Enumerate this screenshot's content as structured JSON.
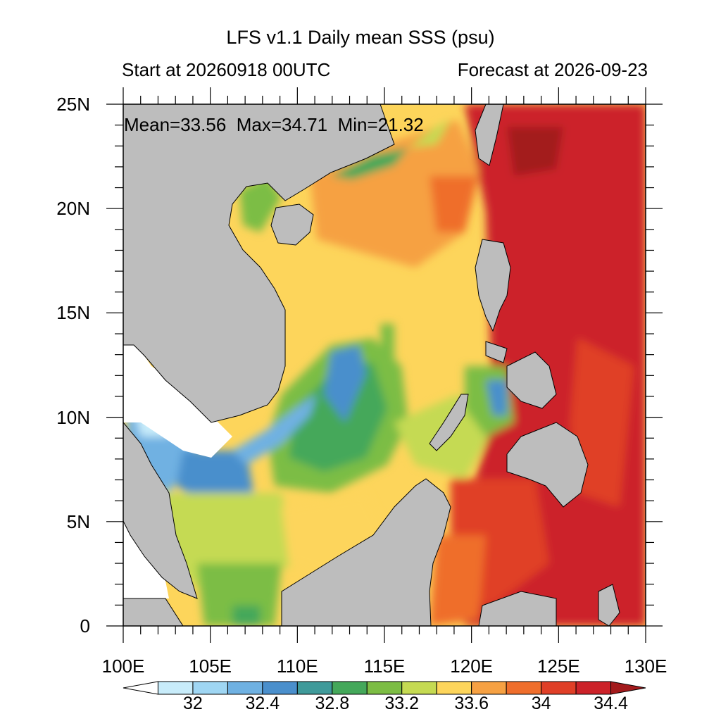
{
  "title": "LFS v1.1 Daily mean SSS (psu)",
  "subtitle_left": "Start at 20260918 00UTC",
  "subtitle_right": "Forecast at 2026-09-23",
  "stats": {
    "mean_label": "Mean=33.56",
    "max_label": "Max=34.71",
    "min_label": "Min=21.32"
  },
  "map": {
    "lon_range": [
      100,
      130
    ],
    "lat_range": [
      0,
      25
    ],
    "x_ticks": [
      "100E",
      "105E",
      "110E",
      "115E",
      "120E",
      "125E",
      "130E"
    ],
    "y_ticks": [
      "0",
      "5N",
      "10N",
      "15N",
      "20N",
      "25N"
    ],
    "land_color": "#bdbdbd"
  },
  "colorbar": {
    "labels": [
      "32",
      "32.4",
      "32.8",
      "33.2",
      "33.6",
      "34",
      "34.4"
    ],
    "colors": [
      "#ffffff",
      "#c8ecfa",
      "#9fd6f3",
      "#6fb1e2",
      "#4a8fcc",
      "#3f9a9a",
      "#44a85a",
      "#7cbd44",
      "#c5da52",
      "#fdd55b",
      "#f6a143",
      "#ef6e2c",
      "#e03f27",
      "#cc2229",
      "#a31a1c"
    ]
  }
}
